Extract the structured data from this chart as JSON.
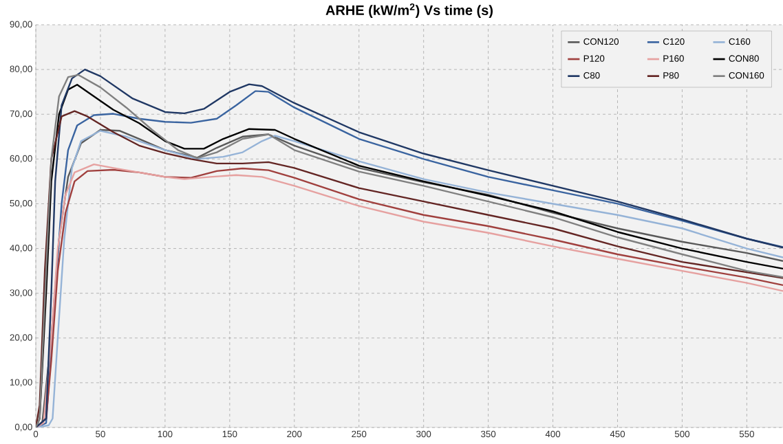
{
  "chart_data": {
    "type": "line",
    "title": "ARHE (kW/m$^{2}$) Vs time (s)",
    "xlim": [
      0,
      578
    ],
    "ylim": [
      0,
      90
    ],
    "xticks": [
      0,
      50,
      100,
      150,
      200,
      250,
      300,
      350,
      400,
      450,
      500,
      550
    ],
    "yticks": [
      {
        "value": 0,
        "label": "0,00"
      },
      {
        "value": 10,
        "label": "10,00"
      },
      {
        "value": 20,
        "label": "20,00"
      },
      {
        "value": 30,
        "label": "30,00"
      },
      {
        "value": 40,
        "label": "40,00"
      },
      {
        "value": 50,
        "label": "50,00"
      },
      {
        "value": 60,
        "label": "60,00"
      },
      {
        "value": 70,
        "label": "70,00"
      },
      {
        "value": 80,
        "label": "80,00"
      },
      {
        "value": 90,
        "label": "90,00"
      }
    ],
    "grid": true,
    "legend": "top right",
    "line_style": "solid",
    "series": [
      {
        "name": "CON120",
        "color": "#595959",
        "x": [
          0,
          5,
          12,
          18,
          25,
          35,
          50,
          65,
          80,
          100,
          125,
          140,
          160,
          180,
          200,
          250,
          300,
          350,
          400,
          450,
          500,
          550,
          578
        ],
        "values": [
          0,
          1,
          20,
          42,
          56,
          63.5,
          66.5,
          66.3,
          64.5,
          62,
          60.3,
          62.5,
          65,
          65.5,
          63,
          58,
          54.8,
          52,
          48,
          44.5,
          41.5,
          39,
          37.2
        ]
      },
      {
        "name": "C120",
        "color": "#3a64a0",
        "x": [
          0,
          8,
          15,
          20,
          25,
          32,
          45,
          60,
          80,
          100,
          120,
          140,
          155,
          170,
          180,
          200,
          250,
          300,
          350,
          400,
          450,
          500,
          550,
          578
        ],
        "values": [
          0,
          1,
          30,
          50,
          62,
          67.5,
          69.8,
          70.1,
          69,
          68.3,
          68.1,
          69,
          72,
          75.2,
          75,
          71.5,
          64.5,
          60,
          56,
          53,
          50,
          46.2,
          42.2,
          40.3
        ]
      },
      {
        "name": "C160",
        "color": "#95b3d7",
        "x": [
          0,
          10,
          13,
          17,
          22,
          28,
          35,
          50,
          70,
          100,
          125,
          145,
          160,
          175,
          185,
          200,
          250,
          300,
          350,
          400,
          450,
          500,
          550,
          578
        ],
        "values": [
          0,
          0.5,
          2,
          20,
          42,
          58,
          64,
          66.3,
          65,
          62,
          60,
          60.5,
          61.5,
          64,
          65.2,
          64,
          59.5,
          55.5,
          52.5,
          50,
          47.5,
          44.5,
          40,
          38
        ]
      },
      {
        "name": "P120",
        "color": "#a0403e",
        "x": [
          0,
          8,
          12,
          17,
          23,
          30,
          40,
          60,
          80,
          100,
          120,
          140,
          160,
          180,
          200,
          250,
          300,
          350,
          400,
          450,
          500,
          550,
          578
        ],
        "values": [
          0,
          2,
          15,
          35,
          48,
          55,
          57.3,
          57.6,
          57,
          56,
          55.8,
          57.3,
          57.9,
          57.5,
          55.8,
          51,
          47.5,
          45,
          42,
          38.7,
          36,
          33.5,
          31.8
        ]
      },
      {
        "name": "P160",
        "color": "#e6a1a0",
        "x": [
          0,
          6,
          12,
          17,
          23,
          30,
          45,
          60,
          80,
          100,
          115,
          135,
          155,
          175,
          200,
          250,
          300,
          350,
          400,
          450,
          500,
          550,
          578
        ],
        "values": [
          0,
          1,
          20,
          40,
          52,
          57,
          58.8,
          58,
          57,
          56,
          55.5,
          56,
          56.4,
          56,
          54,
          49.5,
          46,
          43.5,
          40.5,
          37.7,
          35,
          32.3,
          30.5
        ]
      },
      {
        "name": "CON80",
        "color": "#000000",
        "x": [
          0,
          3,
          8,
          12,
          18,
          25,
          32,
          45,
          60,
          80,
          100,
          115,
          130,
          145,
          165,
          185,
          200,
          250,
          300,
          350,
          400,
          450,
          500,
          550,
          578
        ],
        "values": [
          0,
          2,
          30,
          55,
          70,
          75.5,
          76.6,
          74,
          71,
          68,
          64,
          62.3,
          62.3,
          64.5,
          66.7,
          66.5,
          64.5,
          58.5,
          55,
          51.8,
          48.3,
          43.7,
          40,
          37,
          35.5
        ]
      },
      {
        "name": "C80",
        "color": "#203864",
        "x": [
          0,
          8,
          12,
          15,
          20,
          28,
          38,
          50,
          75,
          100,
          115,
          130,
          150,
          165,
          175,
          200,
          250,
          300,
          350,
          400,
          450,
          500,
          550,
          578
        ],
        "values": [
          0,
          2,
          30,
          55,
          72,
          78,
          80,
          78.5,
          73.5,
          70.5,
          70.2,
          71.2,
          75,
          76.7,
          76.3,
          72.5,
          66,
          61.2,
          57.5,
          54,
          50.5,
          46.5,
          42.2,
          40.2
        ]
      },
      {
        "name": "P80",
        "color": "#632523",
        "x": [
          0,
          3,
          7,
          12,
          20,
          30,
          40,
          60,
          80,
          100,
          120,
          140,
          160,
          180,
          200,
          250,
          300,
          350,
          400,
          450,
          500,
          550,
          578
        ],
        "values": [
          0,
          5,
          35,
          60,
          69.5,
          70.7,
          69.5,
          66,
          63,
          61.3,
          60,
          59,
          59,
          59.3,
          58,
          53.5,
          50.5,
          47.5,
          44.5,
          40.5,
          37,
          34.7,
          33.4
        ]
      },
      {
        "name": "CON160",
        "color": "#808080",
        "x": [
          0,
          3,
          8,
          12,
          18,
          25,
          33,
          50,
          70,
          90,
          110,
          125,
          140,
          160,
          180,
          200,
          250,
          300,
          350,
          400,
          450,
          500,
          550,
          578
        ],
        "values": [
          0,
          2,
          35,
          60,
          74,
          78.3,
          78.8,
          76,
          71.5,
          66.5,
          62,
          60.2,
          61.5,
          64.5,
          65.5,
          62,
          57.2,
          54,
          50.5,
          47,
          42.5,
          38.7,
          35,
          33.6
        ]
      }
    ]
  }
}
